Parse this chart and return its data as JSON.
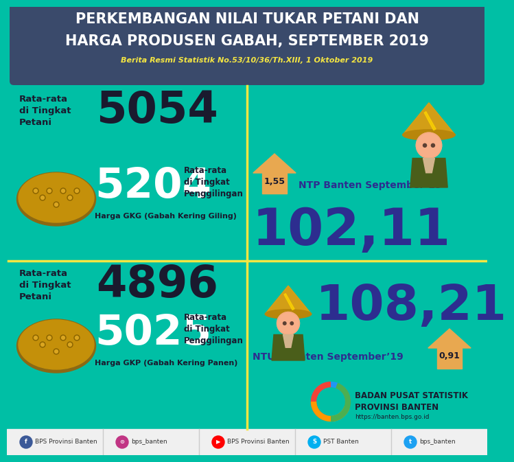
{
  "title_line1": "PERKEMBANGAN NILAI TUKAR PETANI DAN",
  "title_line2": "HARGA PRODUSEN GABAH, SEPTEMBER 2019",
  "subtitle": "Berita Resmi Statistik No.53/10/36/Th.XIII, 1 Oktober 2019",
  "bg_header": "#3a4a6b",
  "bg_teal": "#00BFA5",
  "yellow": "#F5E642",
  "title_color": "#ffffff",
  "subtitle_color": "#F5E642",
  "dark_color": "#1a1a2e",
  "purple_color": "#2d2d8f",
  "white_color": "#ffffff",
  "orange_arrow": "#E8A850",
  "gkg_petani_label": "Rata-rata\ndi Tingkat\nPetani",
  "gkg_petani_value": "5054",
  "gkg_value": "5204",
  "gkg_penggilingan_label": "Rata-rata\ndi Tingkat\nPenggilingan",
  "gkg_label": "Harga GKG (Gabah Kering Giling)",
  "gkp_petani_label": "Rata-rata\ndi Tingkat\nPetani",
  "gkp_petani_value": "4896",
  "gkp_value": "5025",
  "gkp_penggilingan_label": "Rata-rata\ndi Tingkat\nPenggilingan",
  "gkp_label": "Harga GKP (Gabah Kering Panen)",
  "ntp_label": "NTP Banten September’19",
  "ntp_value": "102,11",
  "ntp_increase": "1,55",
  "ntup_label": "NTUP Banten September’19",
  "ntup_value": "108,21",
  "ntup_increase": "0,91",
  "bps_org1": "BADAN PUSAT STATISTIK",
  "bps_org2": "PROVINSI BANTEN",
  "bps_web": "https://banten.bps.go.id",
  "footer_labels": [
    "BPS Provinsi Banten",
    "bps_banten",
    "BPS Provinsi Banten",
    "PST Banten",
    "bps_banten"
  ],
  "footer_icon_colors": [
    "#3b5998",
    "#C13584",
    "#FF0000",
    "#00AFF0",
    "#1DA1F2"
  ],
  "footer_bg": "#f0f0f0"
}
